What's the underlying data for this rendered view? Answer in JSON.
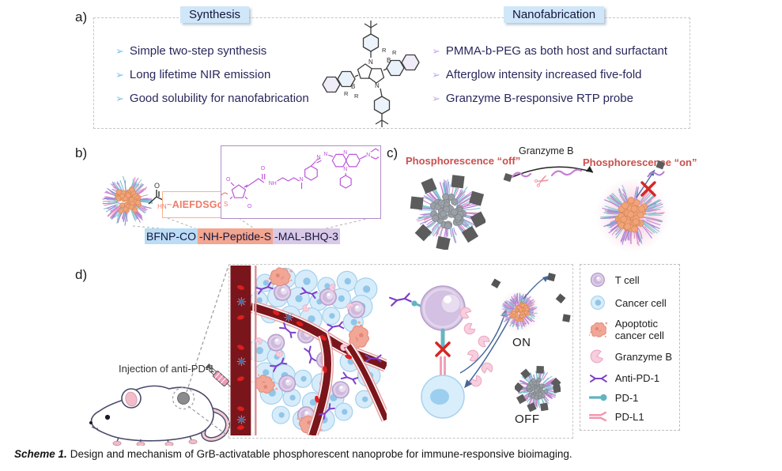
{
  "figure": {
    "panel_a": {
      "label": "a)",
      "left_header": "Synthesis",
      "right_header": "Nanofabrication",
      "bullet_glyph": "➢",
      "left_bullets": [
        "Simple two-step synthesis",
        "Long lifetime NIR emission",
        "Good solubility for nanofabrication"
      ],
      "right_bullets": [
        "PMMA-b-PEG as both host and surfactant",
        "Afterglow intensity increased five-fold",
        "Granzyme B-responsive RTP probe"
      ],
      "molecule": {
        "n": "N",
        "b": "B",
        "r": "R"
      }
    },
    "panel_b": {
      "label": "b)",
      "peptide_hn": "HN",
      "peptide_squiggle": "~",
      "peptide_seq": "AIEFDSGc",
      "atoms": {
        "o": "O",
        "n": "N",
        "nh": "NH",
        "s": "S"
      },
      "bar_segments": [
        {
          "text": "BFNP-CO",
          "bg": "#badcf4"
        },
        {
          "text": "-NH-Peptide-S",
          "bg": "#f2a58f"
        },
        {
          "text": "-MAL-BHQ-3",
          "bg": "#d8c9e7"
        }
      ]
    },
    "panel_c": {
      "label": "c)",
      "off_label": "Phosphorescence “off”",
      "arrow_label": "Granzyme B",
      "on_label": "Phosphorescence “on”"
    },
    "panel_d": {
      "label": "d)",
      "injection_label": "Injection of anti-PD-1",
      "on_label": "ON",
      "off_label": "OFF",
      "legend": [
        {
          "icon": "t-cell-icon",
          "label": "T cell"
        },
        {
          "icon": "cancer-cell-icon",
          "label": "Cancer cell"
        },
        {
          "icon": "apoptotic-cancer-cell-icon",
          "label": "Apoptotic cancer cell"
        },
        {
          "icon": "granzyme-b-icon",
          "label": "Granzyme B"
        },
        {
          "icon": "anti-pd-1-icon",
          "label": "Anti-PD-1"
        },
        {
          "icon": "pd-1-icon",
          "label": "PD-1"
        },
        {
          "icon": "pd-l1-icon",
          "label": "PD-L1"
        }
      ]
    },
    "caption": {
      "tag": "Scheme 1.",
      "text": "Design and mechanism of GrB-activatable phosphorescent nanoprobe for immune-responsive bioimaging."
    },
    "colors": {
      "header_bg": "#cfe7f8",
      "text_navy": "#28285c",
      "bullet_blue": "#7fc2ec",
      "bullet_purple": "#c6a9ec",
      "phosphorescence_red": "#c9504e",
      "orange_box_border": "#f6b388",
      "purple_box_border": "#b18cc8",
      "peptide_text": "#ee7c68",
      "vessel_red": "#7a161b",
      "quencher_gray": "#5c5c5c"
    }
  }
}
